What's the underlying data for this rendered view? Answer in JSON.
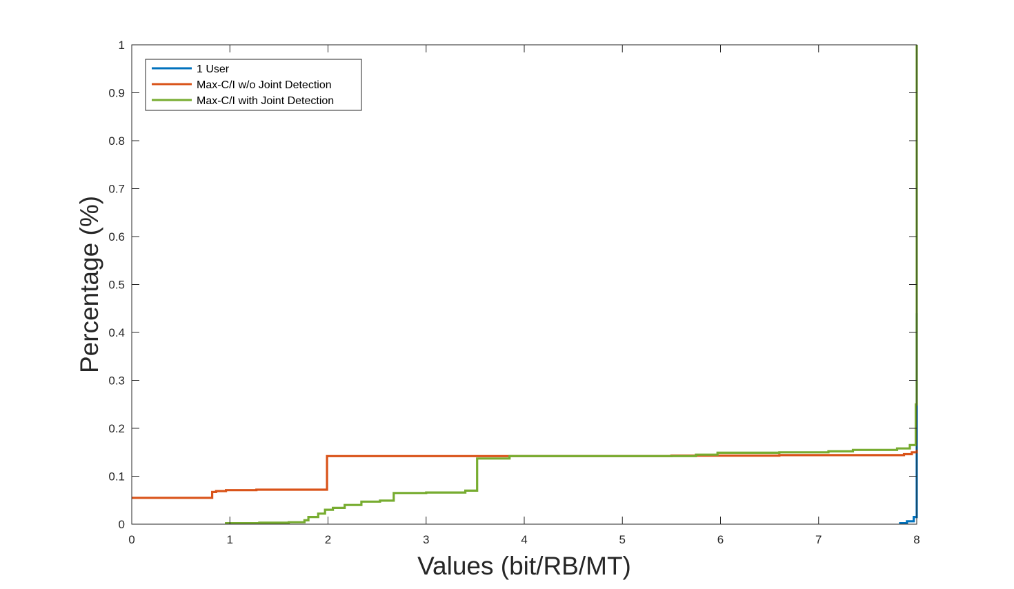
{
  "chart_data": {
    "type": "line",
    "title": "",
    "xlabel": "Values (bit/RB/MT)",
    "ylabel": "Percentage (%)",
    "xlim": [
      0,
      8
    ],
    "ylim": [
      0,
      1
    ],
    "xticks": [
      "0",
      "1",
      "2",
      "3",
      "4",
      "5",
      "6",
      "7",
      "8"
    ],
    "yticks": [
      "0",
      "0.1",
      "0.2",
      "0.3",
      "0.4",
      "0.5",
      "0.6",
      "0.7",
      "0.8",
      "0.9",
      "1"
    ],
    "grid": false,
    "legend_position": "top-left",
    "series": [
      {
        "name": "1 User",
        "color": "#0072BD",
        "x": [
          7.82,
          7.9,
          7.9,
          7.97,
          7.97,
          8.0,
          8.0
        ],
        "y": [
          0.002,
          0.002,
          0.006,
          0.006,
          0.015,
          0.015,
          0.44
        ]
      },
      {
        "name": "Max-C/I w/o Joint Detection",
        "color": "#D95319",
        "x": [
          0,
          0.82,
          0.82,
          0.86,
          0.86,
          0.96,
          0.96,
          1.27,
          1.27,
          1.99,
          1.99,
          3.82,
          3.82,
          5.5,
          5.5,
          6.6,
          6.6,
          7.5,
          7.5,
          7.87,
          7.87,
          7.95,
          7.95,
          8.0,
          8.0
        ],
        "y": [
          0.055,
          0.055,
          0.067,
          0.067,
          0.069,
          0.069,
          0.071,
          0.071,
          0.072,
          0.072,
          0.142,
          0.142,
          0.142,
          0.142,
          0.143,
          0.143,
          0.144,
          0.144,
          0.144,
          0.144,
          0.146,
          0.146,
          0.15,
          0.15,
          0.155
        ]
      },
      {
        "name": "Max-C/I with Joint Detection",
        "color": "#77AC30",
        "x": [
          0.95,
          1.3,
          1.3,
          1.6,
          1.6,
          1.76,
          1.76,
          1.8,
          1.8,
          1.9,
          1.9,
          1.97,
          1.97,
          2.05,
          2.05,
          2.17,
          2.17,
          2.34,
          2.34,
          2.53,
          2.53,
          2.67,
          2.67,
          3.0,
          3.0,
          3.4,
          3.4,
          3.52,
          3.52,
          3.85,
          3.85,
          5.75,
          5.75,
          5.97,
          5.97,
          6.6,
          6.6,
          7.1,
          7.1,
          7.35,
          7.35,
          7.8,
          7.8,
          7.93,
          7.93,
          7.99,
          7.99,
          8.0,
          8.0
        ],
        "y": [
          0.002,
          0.002,
          0.003,
          0.003,
          0.004,
          0.004,
          0.008,
          0.008,
          0.015,
          0.015,
          0.022,
          0.022,
          0.03,
          0.03,
          0.034,
          0.034,
          0.04,
          0.04,
          0.047,
          0.047,
          0.049,
          0.049,
          0.065,
          0.065,
          0.066,
          0.066,
          0.07,
          0.07,
          0.137,
          0.137,
          0.142,
          0.142,
          0.145,
          0.145,
          0.149,
          0.149,
          0.15,
          0.15,
          0.152,
          0.152,
          0.155,
          0.155,
          0.158,
          0.158,
          0.165,
          0.165,
          0.25,
          0.25,
          1.0
        ]
      }
    ]
  }
}
